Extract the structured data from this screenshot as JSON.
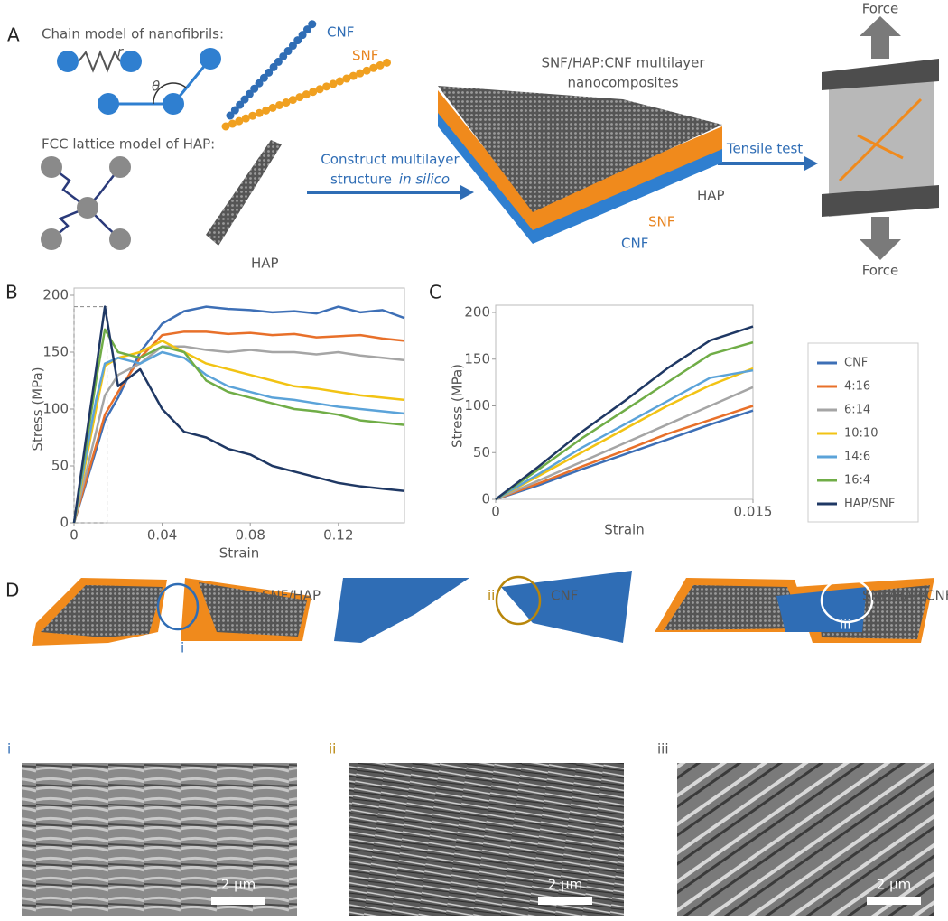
{
  "panel_labels": [
    "A",
    "B",
    "C",
    "D"
  ],
  "panel_a": {
    "chain_title": "Chain model of nanofibrils:",
    "bond_symbol": "r",
    "angle_symbol": "θ",
    "cnf": "CNF",
    "snf": "SNF",
    "fcc_title": "FCC lattice model of HAP:",
    "hap": "HAP",
    "construct_line1": "Construct multilayer",
    "construct_line2": "structure",
    "construct_italic": "in silico",
    "composite_line1": "SNF/HAP:CNF multilayer",
    "composite_line2": "nanocomposites",
    "layer_hap": "HAP",
    "layer_snf": "SNF",
    "layer_cnf": "CNF",
    "tensile": "Tensile test",
    "force_top": "Force",
    "force_bottom": "Force"
  },
  "chart_data": [
    {
      "type": "line",
      "xlabel": "Strain",
      "ylabel": "Stress (MPa)",
      "x": [
        0,
        0.005,
        0.01,
        0.014,
        0.02,
        0.03,
        0.04,
        0.05,
        0.06,
        0.07,
        0.08,
        0.09,
        0.1,
        0.11,
        0.12,
        0.13,
        0.14,
        0.15
      ],
      "series": [
        {
          "color": "#3d6fb6",
          "values": [
            0,
            32,
            64,
            90,
            110,
            150,
            175,
            186,
            190,
            188,
            187,
            185,
            186,
            184,
            190,
            185,
            187,
            180
          ]
        },
        {
          "color": "#e8702a",
          "values": [
            0,
            34,
            68,
            95,
            115,
            145,
            165,
            168,
            168,
            166,
            167,
            165,
            166,
            163,
            164,
            165,
            162,
            160
          ]
        },
        {
          "color": "#a5a5a5",
          "values": [
            0,
            40,
            80,
            112,
            130,
            140,
            155,
            155,
            152,
            150,
            152,
            150,
            150,
            148,
            150,
            147,
            145,
            143
          ]
        },
        {
          "color": "#f2c314",
          "values": [
            0,
            50,
            100,
            138,
            145,
            150,
            160,
            150,
            140,
            135,
            130,
            125,
            120,
            118,
            115,
            112,
            110,
            108
          ]
        },
        {
          "color": "#5ba3d9",
          "values": [
            0,
            55,
            108,
            140,
            145,
            140,
            150,
            145,
            130,
            120,
            115,
            110,
            108,
            105,
            102,
            100,
            98,
            96
          ]
        },
        {
          "color": "#70ad47",
          "values": [
            0,
            62,
            125,
            170,
            150,
            145,
            155,
            150,
            125,
            115,
            110,
            105,
            100,
            98,
            95,
            90,
            88,
            86
          ]
        },
        {
          "color": "#1f3864",
          "values": [
            0,
            68,
            135,
            190,
            120,
            135,
            100,
            80,
            75,
            65,
            60,
            50,
            45,
            40,
            35,
            32,
            30,
            28
          ]
        }
      ],
      "xlim": [
        0,
        0.15
      ],
      "ylim": [
        0,
        200
      ],
      "xticks": [
        0,
        0.04,
        0.08,
        0.12
      ],
      "yticks": [
        0,
        50,
        100,
        150,
        200
      ],
      "zoom_box": {
        "xlim": [
          0,
          0.015
        ],
        "ylim": [
          0,
          190
        ]
      }
    },
    {
      "type": "line",
      "xlabel": "Strain",
      "ylabel": "Stress (MPa)",
      "x": [
        0,
        0.0025,
        0.005,
        0.0075,
        0.01,
        0.0125,
        0.015
      ],
      "series": [
        {
          "name": "CNF",
          "color": "#3d6fb6",
          "values": [
            0,
            15,
            32,
            48,
            64,
            80,
            95
          ]
        },
        {
          "name": "4:16",
          "color": "#e8702a",
          "values": [
            0,
            17,
            35,
            52,
            70,
            85,
            100
          ]
        },
        {
          "name": "6:14",
          "color": "#a5a5a5",
          "values": [
            0,
            20,
            40,
            60,
            80,
            100,
            120
          ]
        },
        {
          "name": "10:10",
          "color": "#f2c314",
          "values": [
            0,
            25,
            50,
            75,
            100,
            122,
            140
          ]
        },
        {
          "name": "14:6",
          "color": "#5ba3d9",
          "values": [
            0,
            27,
            55,
            80,
            105,
            130,
            138
          ]
        },
        {
          "name": "16:4",
          "color": "#70ad47",
          "values": [
            0,
            32,
            65,
            95,
            125,
            155,
            168
          ]
        },
        {
          "name": "HAP/SNF",
          "color": "#1f3864",
          "values": [
            0,
            35,
            72,
            105,
            140,
            170,
            185
          ]
        }
      ],
      "xlim": [
        0,
        0.015
      ],
      "ylim": [
        0,
        200
      ],
      "xticks": [
        0,
        0.015
      ],
      "yticks": [
        0,
        50,
        100,
        150,
        200
      ],
      "legend": "right"
    }
  ],
  "panel_d": {
    "snf_hap": "SNF/HAP",
    "mark_i": "i",
    "cnf": "CNF",
    "mark_ii": "ii",
    "composite": "SNF/HAP:CNF",
    "mark_iii": "iii",
    "sem_i": "i",
    "sem_ii": "ii",
    "sem_iii": "iii",
    "scale_i": "2 µm",
    "scale_ii": "2 µm",
    "scale_iii": "2 µm"
  }
}
